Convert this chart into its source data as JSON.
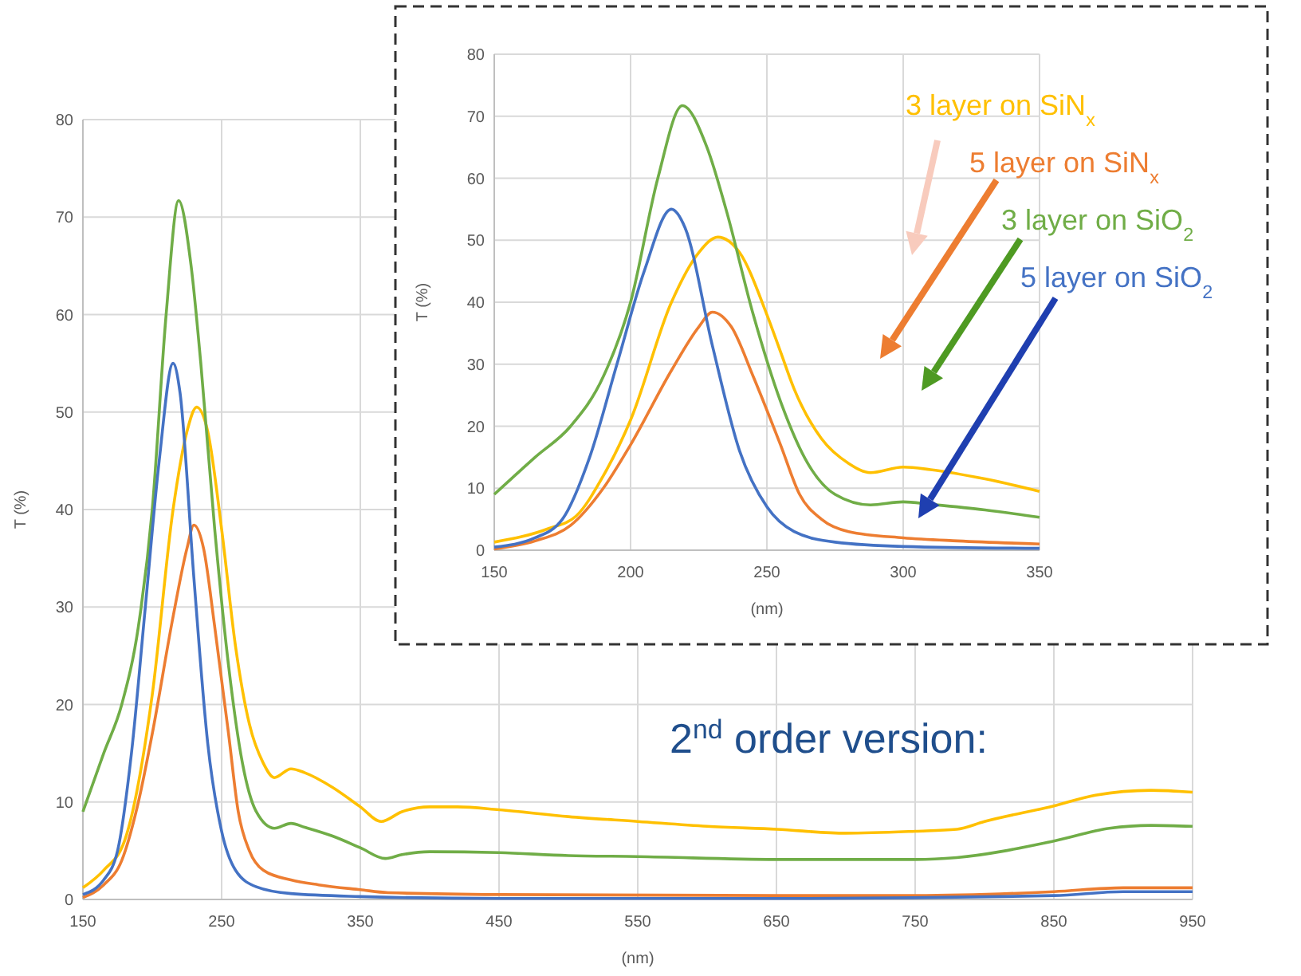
{
  "chart_data": [
    {
      "type": "line",
      "xlabel": "(nm)",
      "ylabel": "T (%)",
      "xlim": [
        150,
        950
      ],
      "ylim": [
        0,
        80
      ],
      "xticks": [
        150,
        250,
        350,
        450,
        550,
        650,
        750,
        850,
        950
      ],
      "yticks": [
        0,
        10,
        20,
        30,
        40,
        50,
        60,
        70,
        80
      ],
      "grid": true,
      "annotations": [
        "2$^{nd}$ order version:"
      ],
      "series": [
        {
          "color": "#ffc000",
          "x": [
            150,
            165,
            180,
            200,
            215,
            225,
            232,
            240,
            250,
            260,
            270,
            280,
            288,
            300,
            310,
            330,
            350,
            365,
            380,
            400,
            420,
            450,
            500,
            550,
            600,
            650,
            700,
            750,
            780,
            800,
            850,
            880,
            920,
            950
          ],
          "values": [
            1.2,
            3,
            6,
            21,
            40,
            48,
            50.5,
            48,
            38,
            26,
            18,
            14,
            12.5,
            13.4,
            13,
            11.5,
            9.5,
            8,
            9,
            9.5,
            9.5,
            9.2,
            8.5,
            8,
            7.5,
            7.2,
            6.8,
            7,
            7.2,
            8,
            9.6,
            10.7,
            11.2,
            11
          ]
        },
        {
          "color": "#ed7d31",
          "x": [
            150,
            165,
            178,
            190,
            200,
            215,
            225,
            230,
            237,
            245,
            255,
            262,
            270,
            280,
            300,
            320,
            350,
            370,
            450,
            650,
            750,
            850,
            900,
            950
          ],
          "values": [
            0.2,
            1.5,
            4,
            10,
            17,
            29,
            36,
            38.4,
            36,
            28,
            17,
            9,
            5,
            3,
            2,
            1.5,
            1,
            0.7,
            0.5,
            0.4,
            0.4,
            0.8,
            1.2,
            1.2
          ]
        },
        {
          "color": "#70ad47",
          "x": [
            150,
            165,
            178,
            190,
            200,
            210,
            219,
            228,
            235,
            245,
            255,
            265,
            275,
            288,
            300,
            310,
            330,
            350,
            368,
            380,
            400,
            450,
            500,
            550,
            650,
            750,
            780,
            850,
            890,
            920,
            950
          ],
          "values": [
            9,
            15,
            20,
            28,
            40,
            60,
            71.7,
            65,
            55,
            38,
            24,
            14,
            9,
            7.3,
            7.8,
            7.4,
            6.5,
            5.3,
            4.2,
            4.6,
            4.9,
            4.8,
            4.5,
            4.4,
            4.1,
            4.1,
            4.3,
            6,
            7.3,
            7.6,
            7.5
          ]
        },
        {
          "color": "#4472c4",
          "x": [
            150,
            165,
            175,
            185,
            195,
            205,
            215,
            220,
            230,
            240,
            250,
            260,
            275,
            300,
            350,
            450,
            650,
            850,
            900,
            950
          ],
          "values": [
            0.5,
            2,
            5,
            15,
            30,
            45,
            55,
            52,
            33,
            16,
            7,
            3,
            1.3,
            0.6,
            0.3,
            0.1,
            0.1,
            0.4,
            0.8,
            0.8
          ]
        }
      ]
    },
    {
      "type": "line",
      "xlabel": "(nm)",
      "ylabel": "T (%)",
      "xlim": [
        150,
        350
      ],
      "ylim": [
        0,
        80
      ],
      "xticks": [
        150,
        200,
        250,
        300,
        350
      ],
      "yticks": [
        0,
        10,
        20,
        30,
        40,
        50,
        60,
        70,
        80
      ],
      "grid": true,
      "series": [
        {
          "name": "3 layer on SiN$_{x}$",
          "color": "#ffc000",
          "x": [
            150,
            170,
            180,
            190,
            200,
            215,
            225,
            232,
            240,
            250,
            255,
            260,
            270,
            280,
            288,
            300,
            310,
            330,
            350
          ],
          "values": [
            1.3,
            3.5,
            5.5,
            12,
            21,
            40,
            48,
            50.5,
            48,
            38,
            32,
            26,
            18,
            14,
            12.5,
            13.4,
            13,
            11.5,
            9.5
          ]
        },
        {
          "name": "5 layer on SiN$_{x}$",
          "color": "#ed7d31",
          "x": [
            150,
            165,
            178,
            190,
            200,
            215,
            225,
            230,
            237,
            245,
            255,
            262,
            270,
            280,
            300,
            320,
            350
          ],
          "values": [
            0.2,
            1.5,
            4,
            10,
            17,
            29,
            36,
            38.4,
            36,
            28,
            17,
            9,
            5,
            3,
            2,
            1.5,
            1
          ]
        },
        {
          "name": "3 layer on SiO$_{2}$",
          "color": "#70ad47",
          "x": [
            150,
            165,
            178,
            190,
            200,
            210,
            219,
            228,
            235,
            245,
            255,
            265,
            275,
            288,
            300,
            310,
            330,
            350
          ],
          "values": [
            9,
            15,
            20,
            28,
            40,
            60,
            71.7,
            65,
            55,
            38,
            24,
            14,
            9,
            7.3,
            7.8,
            7.4,
            6.5,
            5.3
          ]
        },
        {
          "name": "5 layer on SiO$_{2}$",
          "color": "#4472c4",
          "x": [
            150,
            165,
            175,
            185,
            195,
            205,
            215,
            220,
            230,
            240,
            250,
            260,
            275,
            300,
            350
          ],
          "values": [
            0.5,
            2,
            5,
            15,
            30,
            45,
            55,
            52,
            33,
            16,
            7,
            3,
            1.3,
            0.6,
            0.3
          ]
        }
      ]
    }
  ]
}
